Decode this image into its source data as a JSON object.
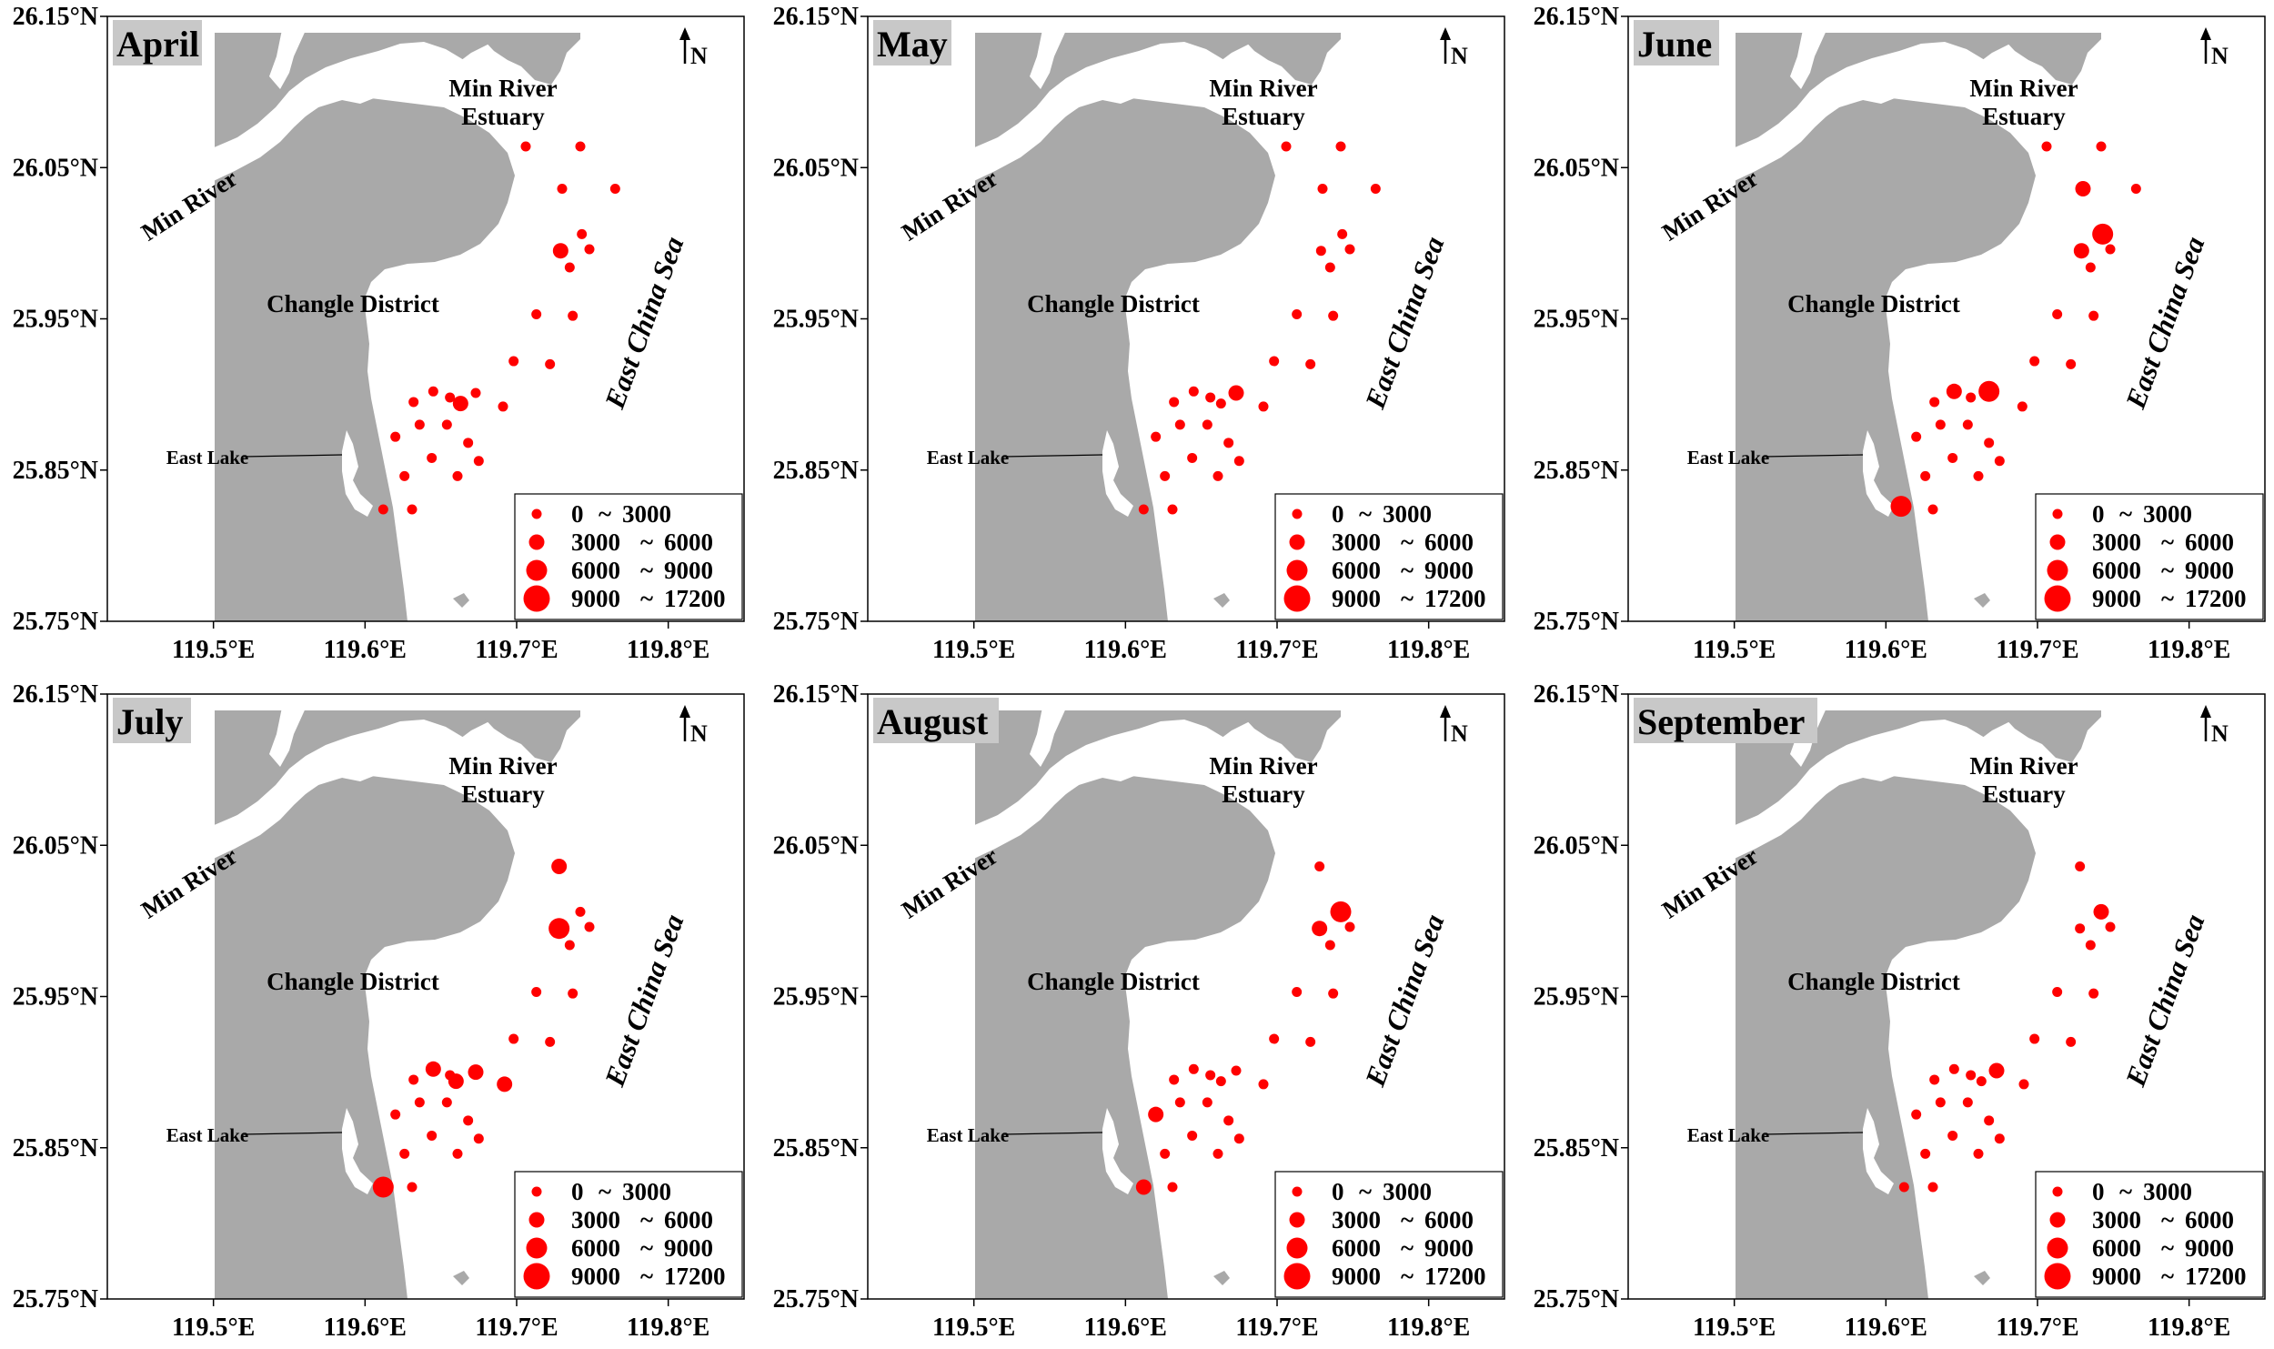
{
  "figure": {
    "north_label": "N",
    "places": {
      "estuary_line1": "Min River",
      "estuary_line2": "Estuary",
      "river": "Min River",
      "district": "Changle District",
      "lake": "East Lake",
      "sea": "East China Sea"
    },
    "lat_ticks": [
      "26.15°N",
      "26.05°N",
      "25.95°N",
      "25.85°N",
      "25.75°N"
    ],
    "lon_ticks": [
      "119.5°E",
      "119.6°E",
      "119.7°E",
      "119.8°E"
    ],
    "colors": {
      "land": "#a9a9a9",
      "water": "#ffffff",
      "marker": "#ff0000"
    },
    "legend": [
      {
        "label": "0",
        "sep": "~",
        "upper": "3000"
      },
      {
        "label": "3000",
        "sep": "~",
        "upper": "6000"
      },
      {
        "label": "6000",
        "sep": "~",
        "upper": "9000"
      },
      {
        "label": "9000",
        "sep": "~",
        "upper": "17200"
      }
    ]
  },
  "chart_data": {
    "type": "scatter",
    "lon_range": [
      119.43,
      119.85
    ],
    "lat_range": [
      25.75,
      26.15
    ],
    "size_classes": [
      "0 ~ 3000",
      "3000 ~ 6000",
      "6000 ~ 9000",
      "9000 ~ 17200"
    ],
    "panels": [
      {
        "month": "April",
        "stations": [
          {
            "lon": 119.706,
            "lat": 26.064,
            "c": 0
          },
          {
            "lon": 119.742,
            "lat": 26.064,
            "c": 0
          },
          {
            "lon": 119.73,
            "lat": 26.036,
            "c": 0
          },
          {
            "lon": 119.765,
            "lat": 26.036,
            "c": 0
          },
          {
            "lon": 119.743,
            "lat": 26.006,
            "c": 0
          },
          {
            "lon": 119.729,
            "lat": 25.995,
            "c": 1
          },
          {
            "lon": 119.748,
            "lat": 25.996,
            "c": 0
          },
          {
            "lon": 119.735,
            "lat": 25.984,
            "c": 0
          },
          {
            "lon": 119.713,
            "lat": 25.953,
            "c": 0
          },
          {
            "lon": 119.737,
            "lat": 25.952,
            "c": 0
          },
          {
            "lon": 119.698,
            "lat": 25.922,
            "c": 0
          },
          {
            "lon": 119.722,
            "lat": 25.92,
            "c": 0
          },
          {
            "lon": 119.632,
            "lat": 25.895,
            "c": 0
          },
          {
            "lon": 119.645,
            "lat": 25.902,
            "c": 0
          },
          {
            "lon": 119.656,
            "lat": 25.898,
            "c": 0
          },
          {
            "lon": 119.663,
            "lat": 25.894,
            "c": 1
          },
          {
            "lon": 119.673,
            "lat": 25.901,
            "c": 0
          },
          {
            "lon": 119.62,
            "lat": 25.872,
            "c": 0
          },
          {
            "lon": 119.636,
            "lat": 25.88,
            "c": 0
          },
          {
            "lon": 119.654,
            "lat": 25.88,
            "c": 0
          },
          {
            "lon": 119.691,
            "lat": 25.892,
            "c": 0
          },
          {
            "lon": 119.668,
            "lat": 25.868,
            "c": 0
          },
          {
            "lon": 119.626,
            "lat": 25.846,
            "c": 0
          },
          {
            "lon": 119.644,
            "lat": 25.858,
            "c": 0
          },
          {
            "lon": 119.661,
            "lat": 25.846,
            "c": 0
          },
          {
            "lon": 119.675,
            "lat": 25.856,
            "c": 0
          },
          {
            "lon": 119.612,
            "lat": 25.824,
            "c": 0
          },
          {
            "lon": 119.631,
            "lat": 25.824,
            "c": 0
          }
        ]
      },
      {
        "month": "May",
        "stations": [
          {
            "lon": 119.706,
            "lat": 26.064,
            "c": 0
          },
          {
            "lon": 119.742,
            "lat": 26.064,
            "c": 0
          },
          {
            "lon": 119.73,
            "lat": 26.036,
            "c": 0
          },
          {
            "lon": 119.765,
            "lat": 26.036,
            "c": 0
          },
          {
            "lon": 119.743,
            "lat": 26.006,
            "c": 0
          },
          {
            "lon": 119.729,
            "lat": 25.995,
            "c": 0
          },
          {
            "lon": 119.748,
            "lat": 25.996,
            "c": 0
          },
          {
            "lon": 119.735,
            "lat": 25.984,
            "c": 0
          },
          {
            "lon": 119.713,
            "lat": 25.953,
            "c": 0
          },
          {
            "lon": 119.737,
            "lat": 25.952,
            "c": 0
          },
          {
            "lon": 119.698,
            "lat": 25.922,
            "c": 0
          },
          {
            "lon": 119.722,
            "lat": 25.92,
            "c": 0
          },
          {
            "lon": 119.632,
            "lat": 25.895,
            "c": 0
          },
          {
            "lon": 119.645,
            "lat": 25.902,
            "c": 0
          },
          {
            "lon": 119.656,
            "lat": 25.898,
            "c": 0
          },
          {
            "lon": 119.663,
            "lat": 25.894,
            "c": 0
          },
          {
            "lon": 119.673,
            "lat": 25.901,
            "c": 1
          },
          {
            "lon": 119.62,
            "lat": 25.872,
            "c": 0
          },
          {
            "lon": 119.636,
            "lat": 25.88,
            "c": 0
          },
          {
            "lon": 119.654,
            "lat": 25.88,
            "c": 0
          },
          {
            "lon": 119.691,
            "lat": 25.892,
            "c": 0
          },
          {
            "lon": 119.668,
            "lat": 25.868,
            "c": 0
          },
          {
            "lon": 119.626,
            "lat": 25.846,
            "c": 0
          },
          {
            "lon": 119.644,
            "lat": 25.858,
            "c": 0
          },
          {
            "lon": 119.661,
            "lat": 25.846,
            "c": 0
          },
          {
            "lon": 119.675,
            "lat": 25.856,
            "c": 0
          },
          {
            "lon": 119.612,
            "lat": 25.824,
            "c": 0
          },
          {
            "lon": 119.631,
            "lat": 25.824,
            "c": 0
          }
        ]
      },
      {
        "month": "June",
        "stations": [
          {
            "lon": 119.706,
            "lat": 26.064,
            "c": 0
          },
          {
            "lon": 119.742,
            "lat": 26.064,
            "c": 0
          },
          {
            "lon": 119.73,
            "lat": 26.036,
            "c": 1
          },
          {
            "lon": 119.765,
            "lat": 26.036,
            "c": 0
          },
          {
            "lon": 119.743,
            "lat": 26.006,
            "c": 2
          },
          {
            "lon": 119.729,
            "lat": 25.995,
            "c": 1
          },
          {
            "lon": 119.748,
            "lat": 25.996,
            "c": 0
          },
          {
            "lon": 119.735,
            "lat": 25.984,
            "c": 0
          },
          {
            "lon": 119.713,
            "lat": 25.953,
            "c": 0
          },
          {
            "lon": 119.737,
            "lat": 25.952,
            "c": 0
          },
          {
            "lon": 119.698,
            "lat": 25.922,
            "c": 0
          },
          {
            "lon": 119.722,
            "lat": 25.92,
            "c": 0
          },
          {
            "lon": 119.632,
            "lat": 25.895,
            "c": 0
          },
          {
            "lon": 119.645,
            "lat": 25.902,
            "c": 1
          },
          {
            "lon": 119.656,
            "lat": 25.898,
            "c": 0
          },
          {
            "lon": 119.668,
            "lat": 25.902,
            "c": 2
          },
          {
            "lon": 119.69,
            "lat": 25.892,
            "c": 0
          },
          {
            "lon": 119.62,
            "lat": 25.872,
            "c": 0
          },
          {
            "lon": 119.636,
            "lat": 25.88,
            "c": 0
          },
          {
            "lon": 119.654,
            "lat": 25.88,
            "c": 0
          },
          {
            "lon": 119.668,
            "lat": 25.868,
            "c": 0
          },
          {
            "lon": 119.626,
            "lat": 25.846,
            "c": 0
          },
          {
            "lon": 119.644,
            "lat": 25.858,
            "c": 0
          },
          {
            "lon": 119.661,
            "lat": 25.846,
            "c": 0
          },
          {
            "lon": 119.675,
            "lat": 25.856,
            "c": 0
          },
          {
            "lon": 119.61,
            "lat": 25.826,
            "c": 2
          },
          {
            "lon": 119.631,
            "lat": 25.824,
            "c": 0
          }
        ]
      },
      {
        "month": "July",
        "stations": [
          {
            "lon": 119.728,
            "lat": 26.036,
            "c": 1
          },
          {
            "lon": 119.742,
            "lat": 26.006,
            "c": 0
          },
          {
            "lon": 119.728,
            "lat": 25.995,
            "c": 2
          },
          {
            "lon": 119.748,
            "lat": 25.996,
            "c": 0
          },
          {
            "lon": 119.735,
            "lat": 25.984,
            "c": 0
          },
          {
            "lon": 119.713,
            "lat": 25.953,
            "c": 0
          },
          {
            "lon": 119.737,
            "lat": 25.952,
            "c": 0
          },
          {
            "lon": 119.698,
            "lat": 25.922,
            "c": 0
          },
          {
            "lon": 119.722,
            "lat": 25.92,
            "c": 0
          },
          {
            "lon": 119.632,
            "lat": 25.895,
            "c": 0
          },
          {
            "lon": 119.645,
            "lat": 25.902,
            "c": 1
          },
          {
            "lon": 119.656,
            "lat": 25.898,
            "c": 0
          },
          {
            "lon": 119.66,
            "lat": 25.894,
            "c": 1
          },
          {
            "lon": 119.673,
            "lat": 25.9,
            "c": 1
          },
          {
            "lon": 119.692,
            "lat": 25.892,
            "c": 1
          },
          {
            "lon": 119.62,
            "lat": 25.872,
            "c": 0
          },
          {
            "lon": 119.636,
            "lat": 25.88,
            "c": 0
          },
          {
            "lon": 119.654,
            "lat": 25.88,
            "c": 0
          },
          {
            "lon": 119.668,
            "lat": 25.868,
            "c": 0
          },
          {
            "lon": 119.626,
            "lat": 25.846,
            "c": 0
          },
          {
            "lon": 119.644,
            "lat": 25.858,
            "c": 0
          },
          {
            "lon": 119.661,
            "lat": 25.846,
            "c": 0
          },
          {
            "lon": 119.675,
            "lat": 25.856,
            "c": 0
          },
          {
            "lon": 119.612,
            "lat": 25.824,
            "c": 2
          },
          {
            "lon": 119.631,
            "lat": 25.824,
            "c": 0
          }
        ]
      },
      {
        "month": "August",
        "stations": [
          {
            "lon": 119.728,
            "lat": 26.036,
            "c": 0
          },
          {
            "lon": 119.742,
            "lat": 26.006,
            "c": 2
          },
          {
            "lon": 119.728,
            "lat": 25.995,
            "c": 1
          },
          {
            "lon": 119.748,
            "lat": 25.996,
            "c": 0
          },
          {
            "lon": 119.735,
            "lat": 25.984,
            "c": 0
          },
          {
            "lon": 119.713,
            "lat": 25.953,
            "c": 0
          },
          {
            "lon": 119.737,
            "lat": 25.952,
            "c": 0
          },
          {
            "lon": 119.698,
            "lat": 25.922,
            "c": 0
          },
          {
            "lon": 119.722,
            "lat": 25.92,
            "c": 0
          },
          {
            "lon": 119.632,
            "lat": 25.895,
            "c": 0
          },
          {
            "lon": 119.645,
            "lat": 25.902,
            "c": 0
          },
          {
            "lon": 119.656,
            "lat": 25.898,
            "c": 0
          },
          {
            "lon": 119.663,
            "lat": 25.894,
            "c": 0
          },
          {
            "lon": 119.673,
            "lat": 25.901,
            "c": 0
          },
          {
            "lon": 119.691,
            "lat": 25.892,
            "c": 0
          },
          {
            "lon": 119.62,
            "lat": 25.872,
            "c": 1
          },
          {
            "lon": 119.636,
            "lat": 25.88,
            "c": 0
          },
          {
            "lon": 119.654,
            "lat": 25.88,
            "c": 0
          },
          {
            "lon": 119.668,
            "lat": 25.868,
            "c": 0
          },
          {
            "lon": 119.626,
            "lat": 25.846,
            "c": 0
          },
          {
            "lon": 119.644,
            "lat": 25.858,
            "c": 0
          },
          {
            "lon": 119.661,
            "lat": 25.846,
            "c": 0
          },
          {
            "lon": 119.675,
            "lat": 25.856,
            "c": 0
          },
          {
            "lon": 119.612,
            "lat": 25.824,
            "c": 1
          },
          {
            "lon": 119.631,
            "lat": 25.824,
            "c": 0
          }
        ]
      },
      {
        "month": "September",
        "stations": [
          {
            "lon": 119.728,
            "lat": 26.036,
            "c": 0
          },
          {
            "lon": 119.742,
            "lat": 26.006,
            "c": 1
          },
          {
            "lon": 119.728,
            "lat": 25.995,
            "c": 0
          },
          {
            "lon": 119.748,
            "lat": 25.996,
            "c": 0
          },
          {
            "lon": 119.735,
            "lat": 25.984,
            "c": 0
          },
          {
            "lon": 119.713,
            "lat": 25.953,
            "c": 0
          },
          {
            "lon": 119.737,
            "lat": 25.952,
            "c": 0
          },
          {
            "lon": 119.698,
            "lat": 25.922,
            "c": 0
          },
          {
            "lon": 119.722,
            "lat": 25.92,
            "c": 0
          },
          {
            "lon": 119.632,
            "lat": 25.895,
            "c": 0
          },
          {
            "lon": 119.645,
            "lat": 25.902,
            "c": 0
          },
          {
            "lon": 119.656,
            "lat": 25.898,
            "c": 0
          },
          {
            "lon": 119.663,
            "lat": 25.894,
            "c": 0
          },
          {
            "lon": 119.673,
            "lat": 25.901,
            "c": 1
          },
          {
            "lon": 119.691,
            "lat": 25.892,
            "c": 0
          },
          {
            "lon": 119.62,
            "lat": 25.872,
            "c": 0
          },
          {
            "lon": 119.636,
            "lat": 25.88,
            "c": 0
          },
          {
            "lon": 119.654,
            "lat": 25.88,
            "c": 0
          },
          {
            "lon": 119.668,
            "lat": 25.868,
            "c": 0
          },
          {
            "lon": 119.626,
            "lat": 25.846,
            "c": 0
          },
          {
            "lon": 119.644,
            "lat": 25.858,
            "c": 0
          },
          {
            "lon": 119.661,
            "lat": 25.846,
            "c": 0
          },
          {
            "lon": 119.675,
            "lat": 25.856,
            "c": 0
          },
          {
            "lon": 119.612,
            "lat": 25.824,
            "c": 0
          },
          {
            "lon": 119.631,
            "lat": 25.824,
            "c": 0
          }
        ]
      }
    ]
  }
}
